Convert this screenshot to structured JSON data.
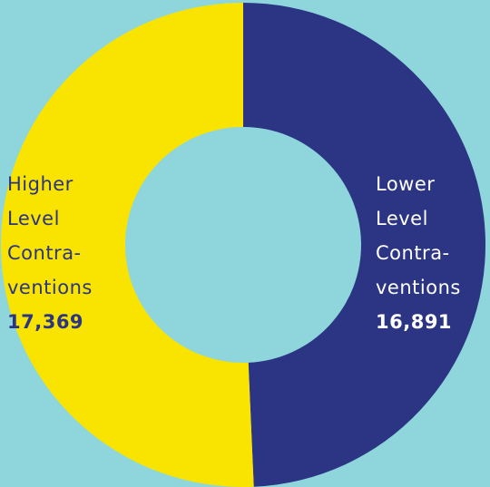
{
  "chart_data": {
    "type": "donut",
    "categories": [
      "Lower\nLevel\nContra-\nventions",
      "Higher\nLevel\nContra-\nventions"
    ],
    "values": [
      16891,
      17369
    ],
    "value_labels": [
      "16,891",
      "17,369"
    ],
    "colors": [
      "#2b3583",
      "#f9e300"
    ]
  }
}
